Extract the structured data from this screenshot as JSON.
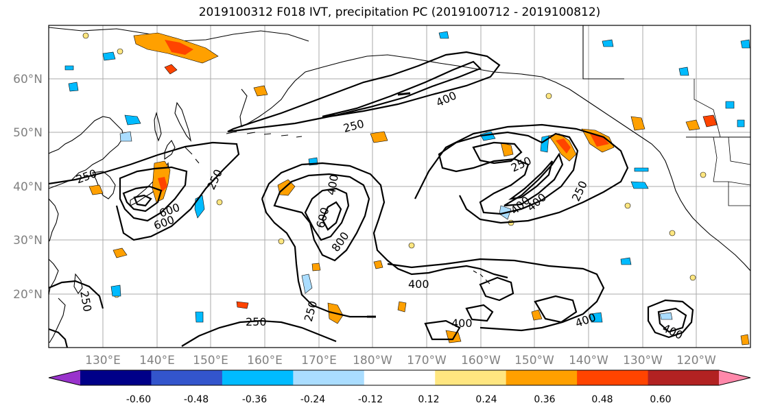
{
  "title": "2019100312 F018 IVT, precipitation PC (2019100712 - 2019100812)",
  "map": {
    "lat_labels": [
      "60°N",
      "50°N",
      "40°N",
      "30°N",
      "20°N"
    ],
    "lon_labels": [
      "130°E",
      "140°E",
      "150°E",
      "160°E",
      "170°E",
      "180°W",
      "170°W",
      "160°W",
      "150°W",
      "140°W",
      "130°W",
      "120°W"
    ],
    "contour_labels": [
      "400",
      "250",
      "250",
      "250",
      "600",
      "600",
      "400",
      "600",
      "800",
      "250",
      "400",
      "400",
      "250",
      "250",
      "600",
      "400",
      "250",
      "400",
      "400",
      "400",
      "250"
    ],
    "contour_color": "#000000",
    "gridline_color": "#aaaaaa",
    "land_outline_color": "#000000"
  },
  "colorbar": {
    "colors": [
      "#9933cc",
      "#000088",
      "#3355cc",
      "#00bbff",
      "#aaddff",
      "#ffffff",
      "#ffe680",
      "#ffa000",
      "#ff4400",
      "#b22222",
      "#ff88aa"
    ],
    "tick_labels": [
      "-0.60",
      "-0.48",
      "-0.36",
      "-0.24",
      "-0.12",
      "0.12",
      "0.24",
      "0.36",
      "0.48",
      "0.60"
    ]
  }
}
